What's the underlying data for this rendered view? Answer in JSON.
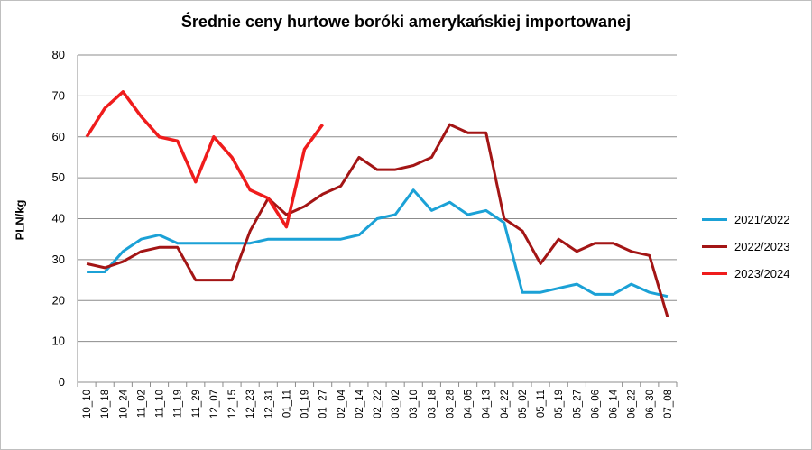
{
  "chart_data": {
    "type": "line",
    "title": "Średnie ceny hurtowe boróki amerykańskiej importowanej",
    "ylabel": "PLN/kg",
    "xlabel": "",
    "ylim": [
      0,
      80
    ],
    "yticks": [
      0,
      10,
      20,
      30,
      40,
      50,
      60,
      70,
      80
    ],
    "grid": true,
    "legend_position": "right",
    "categories": [
      "10_10",
      "10_18",
      "10_24",
      "11_02",
      "11_10",
      "11_19",
      "11_29",
      "12_07",
      "12_15",
      "12_23",
      "12_31",
      "01_11",
      "01_19",
      "01_27",
      "02_04",
      "02_14",
      "02_22",
      "03_02",
      "03_10",
      "03_18",
      "03_28",
      "04_05",
      "04_13",
      "04_22",
      "05_02",
      "05_11",
      "05_19",
      "05_27",
      "06_06",
      "06_14",
      "06_22",
      "06_30",
      "07_08"
    ],
    "series": [
      {
        "name": "2021/2022",
        "color": "#1ba1d6",
        "values": [
          27,
          27,
          32,
          35,
          36,
          34,
          34,
          34,
          34,
          34,
          35,
          35,
          35,
          35,
          35,
          36,
          40,
          41,
          47,
          42,
          44,
          41,
          42,
          39,
          22,
          22,
          23,
          24,
          21.5,
          21.5,
          24,
          22,
          21
        ]
      },
      {
        "name": "2022/2023",
        "color": "#a31515",
        "values": [
          29,
          28,
          29.5,
          32,
          33,
          33,
          25,
          25,
          25,
          37,
          45,
          41,
          43,
          46,
          48,
          55,
          52,
          52,
          53,
          55,
          63,
          61,
          61,
          40,
          37,
          29,
          35,
          32,
          34,
          34,
          32,
          31,
          16
        ]
      },
      {
        "name": "2023/2024",
        "color": "#ef1c1c",
        "values": [
          60,
          67,
          71,
          65,
          60,
          59,
          49,
          60,
          55,
          47,
          45,
          38,
          57,
          63,
          null,
          null,
          null,
          null,
          null,
          null,
          null,
          null,
          null,
          null,
          null,
          null,
          null,
          null,
          null,
          null,
          null,
          null,
          null
        ]
      }
    ]
  }
}
